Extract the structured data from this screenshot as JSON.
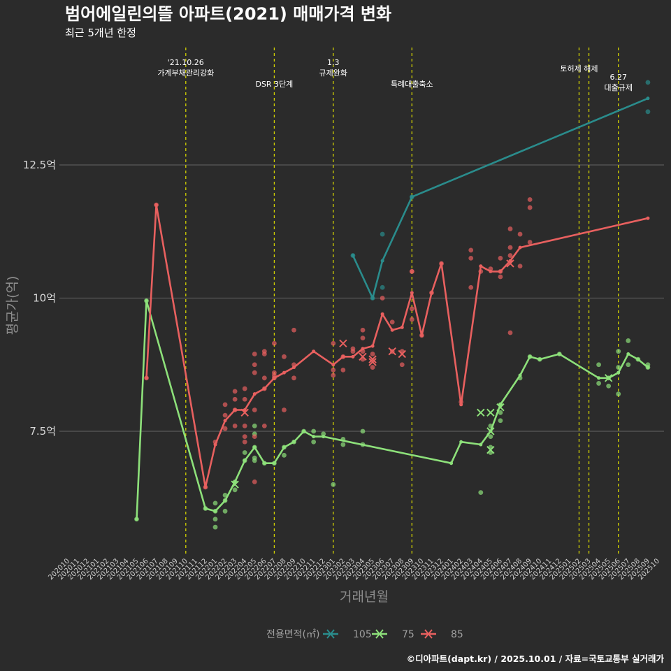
{
  "chart_data": {
    "type": "line",
    "title": "범어에일린의뜰 아파트(2021) 매매가격 변화",
    "subtitle": "최근 5개년 한정",
    "xlabel": "거래년월",
    "ylabel": "평균가(억)",
    "caption": "©디아파트(dapt.kr) / 2025.10.01 / 자료=국토교통부 실거래가",
    "ylim": [
      5.0,
      14.5
    ],
    "yticks": [
      {
        "value": 7.5,
        "label": "7.5억"
      },
      {
        "value": 10,
        "label": "10억"
      },
      {
        "value": 12.5,
        "label": "12.5억"
      }
    ],
    "x_categories": [
      "202010",
      "202011",
      "202012",
      "202101",
      "202102",
      "202103",
      "202104",
      "202105",
      "202106",
      "202107",
      "202108",
      "202109",
      "202110",
      "202111",
      "202112",
      "202201",
      "202202",
      "202203",
      "202204",
      "202205",
      "202206",
      "202207",
      "202208",
      "202209",
      "202210",
      "202211",
      "202212",
      "202301",
      "202302",
      "202303",
      "202304",
      "202305",
      "202306",
      "202307",
      "202308",
      "202309",
      "202310",
      "202311",
      "202312",
      "202401",
      "202402",
      "202403",
      "202404",
      "202405",
      "202406",
      "202407",
      "202408",
      "202409",
      "202410",
      "202411",
      "202412",
      "202501",
      "202502",
      "202503",
      "202504",
      "202505",
      "202506",
      "202507",
      "202508",
      "202509",
      "202510"
    ],
    "legend": {
      "title": "전용면적(㎡)",
      "position": "bottom"
    },
    "annotations": [
      {
        "x": "202110",
        "lines": [
          "'21.10.26",
          "가계부채관리강화"
        ],
        "row": 0
      },
      {
        "x": "202207",
        "lines": [
          "DSR 3단계"
        ],
        "row": 2
      },
      {
        "x": "202301",
        "lines": [
          "1.3",
          "규제완화"
        ],
        "row": 0
      },
      {
        "x": "202309",
        "lines": [
          "특례대출축소"
        ],
        "row": 2
      },
      {
        "x": "202502",
        "lines": [
          "토허제 해제"
        ],
        "row": 1
      },
      {
        "x": "202503",
        "lines": [],
        "row": 1
      },
      {
        "x": "202506",
        "lines": [
          "6.27",
          "대출규제"
        ],
        "row": 3
      }
    ],
    "series": [
      {
        "name": "105",
        "color": "#2a8c8c",
        "line": [
          [
            "202303",
            10.8
          ],
          [
            "202305",
            10.0
          ],
          [
            "202306",
            10.7
          ],
          [
            "202309",
            11.9
          ],
          [
            "202509",
            13.75
          ]
        ],
        "points": [
          [
            "202303",
            10.8
          ],
          [
            "202305",
            10.0
          ],
          [
            "202306",
            11.2
          ],
          [
            "202306",
            10.2
          ],
          [
            "202309",
            11.9
          ],
          [
            "202509",
            14.05
          ],
          [
            "202509",
            13.5
          ]
        ],
        "cancelled": []
      },
      {
        "name": "75",
        "color": "#8de07a",
        "line": [
          [
            "202105",
            5.85
          ],
          [
            "202106",
            9.95
          ],
          [
            "202112",
            6.05
          ],
          [
            "202201",
            6.0
          ],
          [
            "202202",
            6.2
          ],
          [
            "202203",
            6.55
          ],
          [
            "202204",
            6.95
          ],
          [
            "202205",
            7.2
          ],
          [
            "202206",
            6.9
          ],
          [
            "202207",
            6.9
          ],
          [
            "202208",
            7.2
          ],
          [
            "202209",
            7.3
          ],
          [
            "202210",
            7.5
          ],
          [
            "202211",
            7.4
          ],
          [
            "202212",
            7.4
          ],
          [
            "202401",
            6.9
          ],
          [
            "202402",
            7.3
          ],
          [
            "202404",
            7.25
          ],
          [
            "202405",
            7.5
          ],
          [
            "202406",
            8.0
          ],
          [
            "202408",
            8.55
          ],
          [
            "202409",
            8.9
          ],
          [
            "202410",
            8.85
          ],
          [
            "202412",
            8.95
          ],
          [
            "202504",
            8.5
          ],
          [
            "202505",
            8.5
          ],
          [
            "202506",
            8.6
          ],
          [
            "202507",
            8.95
          ],
          [
            "202508",
            8.85
          ],
          [
            "202509",
            8.7
          ]
        ],
        "points": [
          [
            "202105",
            5.85
          ],
          [
            "202106",
            9.95
          ],
          [
            "202112",
            6.05
          ],
          [
            "202201",
            6.0
          ],
          [
            "202201",
            6.15
          ],
          [
            "202201",
            5.85
          ],
          [
            "202201",
            5.7
          ],
          [
            "202202",
            6.2
          ],
          [
            "202202",
            6.3
          ],
          [
            "202202",
            6.0
          ],
          [
            "202203",
            6.55
          ],
          [
            "202203",
            6.4
          ],
          [
            "202204",
            6.95
          ],
          [
            "202204",
            7.1
          ],
          [
            "202205",
            7.2
          ],
          [
            "202205",
            7.6
          ],
          [
            "202205",
            7.45
          ],
          [
            "202205",
            7.0
          ],
          [
            "202205",
            6.95
          ],
          [
            "202206",
            6.9
          ],
          [
            "202207",
            6.9
          ],
          [
            "202208",
            7.2
          ],
          [
            "202208",
            7.05
          ],
          [
            "202209",
            7.3
          ],
          [
            "202210",
            7.5
          ],
          [
            "202211",
            7.5
          ],
          [
            "202211",
            7.3
          ],
          [
            "202212",
            7.45
          ],
          [
            "202301",
            6.5
          ],
          [
            "202302",
            7.25
          ],
          [
            "202302",
            7.35
          ],
          [
            "202304",
            7.25
          ],
          [
            "202304",
            7.5
          ],
          [
            "202404",
            6.35
          ],
          [
            "202405",
            7.6
          ],
          [
            "202405",
            7.4
          ],
          [
            "202405",
            7.2
          ],
          [
            "202405",
            7.1
          ],
          [
            "202406",
            8.0
          ],
          [
            "202406",
            7.85
          ],
          [
            "202406",
            7.7
          ],
          [
            "202408",
            8.5
          ],
          [
            "202409",
            8.9
          ],
          [
            "202410",
            8.85
          ],
          [
            "202412",
            8.95
          ],
          [
            "202504",
            8.75
          ],
          [
            "202504",
            8.4
          ],
          [
            "202505",
            8.5
          ],
          [
            "202505",
            8.35
          ],
          [
            "202506",
            9.0
          ],
          [
            "202506",
            8.7
          ],
          [
            "202506",
            8.2
          ],
          [
            "202507",
            9.2
          ],
          [
            "202507",
            8.75
          ],
          [
            "202508",
            8.85
          ],
          [
            "202509",
            8.75
          ],
          [
            "202509",
            8.7
          ]
        ],
        "cancelled": [
          [
            "202203",
            6.5
          ],
          [
            "202404",
            7.85
          ],
          [
            "202405",
            7.85
          ],
          [
            "202405",
            7.5
          ],
          [
            "202405",
            7.15
          ],
          [
            "202406",
            7.95
          ],
          [
            "202505",
            8.5
          ]
        ]
      },
      {
        "name": "85",
        "color": "#e8605f",
        "line": [
          [
            "202106",
            8.5
          ],
          [
            "202107",
            11.75
          ],
          [
            "202112",
            6.45
          ],
          [
            "202201",
            7.25
          ],
          [
            "202202",
            7.7
          ],
          [
            "202203",
            7.9
          ],
          [
            "202204",
            7.9
          ],
          [
            "202205",
            8.2
          ],
          [
            "202206",
            8.3
          ],
          [
            "202207",
            8.5
          ],
          [
            "202208",
            8.6
          ],
          [
            "202209",
            8.7
          ],
          [
            "202211",
            9.0
          ],
          [
            "202301",
            8.75
          ],
          [
            "202302",
            8.9
          ],
          [
            "202303",
            8.9
          ],
          [
            "202304",
            9.05
          ],
          [
            "202305",
            9.1
          ],
          [
            "202306",
            9.7
          ],
          [
            "202307",
            9.4
          ],
          [
            "202308",
            9.45
          ],
          [
            "202309",
            10.1
          ],
          [
            "202310",
            9.3
          ],
          [
            "202311",
            10.1
          ],
          [
            "202312",
            10.65
          ],
          [
            "202402",
            8.0
          ],
          [
            "202404",
            10.6
          ],
          [
            "202405",
            10.5
          ],
          [
            "202406",
            10.5
          ],
          [
            "202407",
            10.7
          ],
          [
            "202408",
            10.95
          ],
          [
            "202509",
            11.5
          ]
        ],
        "points": [
          [
            "202106",
            8.5
          ],
          [
            "202107",
            11.75
          ],
          [
            "202112",
            6.45
          ],
          [
            "202201",
            7.3
          ],
          [
            "202202",
            7.8
          ],
          [
            "202202",
            7.55
          ],
          [
            "202202",
            8.0
          ],
          [
            "202203",
            7.9
          ],
          [
            "202203",
            8.1
          ],
          [
            "202203",
            8.25
          ],
          [
            "202203",
            7.6
          ],
          [
            "202204",
            8.3
          ],
          [
            "202204",
            8.1
          ],
          [
            "202204",
            7.6
          ],
          [
            "202204",
            7.4
          ],
          [
            "202204",
            7.3
          ],
          [
            "202205",
            8.75
          ],
          [
            "202205",
            8.95
          ],
          [
            "202205",
            8.6
          ],
          [
            "202205",
            7.9
          ],
          [
            "202205",
            7.4
          ],
          [
            "202205",
            6.55
          ],
          [
            "202206",
            8.3
          ],
          [
            "202206",
            8.5
          ],
          [
            "202206",
            8.95
          ],
          [
            "202206",
            9.0
          ],
          [
            "202206",
            7.6
          ],
          [
            "202207",
            9.15
          ],
          [
            "202207",
            8.5
          ],
          [
            "202207",
            8.55
          ],
          [
            "202207",
            8.6
          ],
          [
            "202208",
            8.9
          ],
          [
            "202208",
            7.9
          ],
          [
            "202209",
            9.4
          ],
          [
            "202209",
            8.75
          ],
          [
            "202209",
            8.5
          ],
          [
            "202301",
            9.15
          ],
          [
            "202301",
            8.55
          ],
          [
            "202301",
            8.65
          ],
          [
            "202302",
            8.9
          ],
          [
            "202302",
            8.65
          ],
          [
            "202303",
            9.0
          ],
          [
            "202303",
            9.05
          ],
          [
            "202304",
            9.4
          ],
          [
            "202304",
            9.25
          ],
          [
            "202304",
            9.0
          ],
          [
            "202304",
            8.85
          ],
          [
            "202305",
            8.95
          ],
          [
            "202305",
            8.7
          ],
          [
            "202306",
            10.0
          ],
          [
            "202307",
            9.55
          ],
          [
            "202307",
            9.0
          ],
          [
            "202308",
            9.0
          ],
          [
            "202308",
            8.75
          ],
          [
            "202309",
            10.5
          ],
          [
            "202309",
            10.5
          ],
          [
            "202309",
            9.8
          ],
          [
            "202309",
            9.6
          ],
          [
            "202310",
            9.3
          ],
          [
            "202311",
            10.1
          ],
          [
            "202312",
            10.65
          ],
          [
            "202402",
            8.05
          ],
          [
            "202403",
            10.9
          ],
          [
            "202403",
            10.75
          ],
          [
            "202403",
            10.2
          ],
          [
            "202404",
            10.5
          ],
          [
            "202405",
            10.55
          ],
          [
            "202406",
            10.75
          ],
          [
            "202406",
            10.4
          ],
          [
            "202406",
            10.5
          ],
          [
            "202407",
            11.3
          ],
          [
            "202407",
            10.95
          ],
          [
            "202407",
            10.8
          ],
          [
            "202407",
            9.35
          ],
          [
            "202408",
            11.2
          ],
          [
            "202408",
            10.6
          ],
          [
            "202409",
            11.85
          ],
          [
            "202409",
            11.7
          ],
          [
            "202409",
            11.05
          ]
        ],
        "cancelled": [
          [
            "202204",
            7.85
          ],
          [
            "202302",
            9.15
          ],
          [
            "202304",
            8.9
          ],
          [
            "202305",
            8.85
          ],
          [
            "202305",
            8.8
          ],
          [
            "202307",
            9.0
          ],
          [
            "202308",
            8.95
          ],
          [
            "202407",
            10.65
          ]
        ]
      }
    ]
  }
}
